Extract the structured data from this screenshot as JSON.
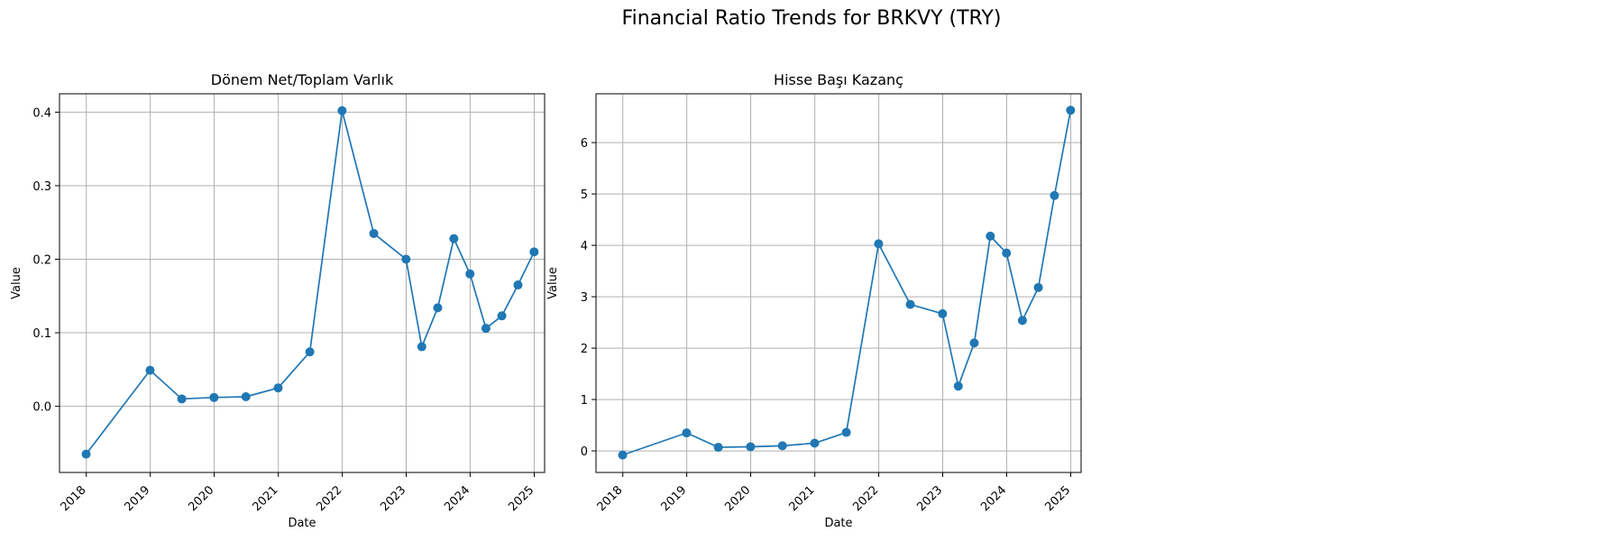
{
  "figure": {
    "title": "Financial Ratio Trends for BRKVY (TRY)"
  },
  "series_color": "#1f77b4",
  "chart_data": [
    {
      "type": "line",
      "title": "Dönem Net/Toplam Varlık",
      "xlabel": "Date",
      "ylabel": "Value",
      "grid": true,
      "x_type": "date",
      "xlim": [
        "2017-08-01",
        "2025-03-01"
      ],
      "ylim": [
        -0.09,
        0.425
      ],
      "x_ticks": [
        "2018",
        "2019",
        "2020",
        "2021",
        "2022",
        "2023",
        "2024",
        "2025"
      ],
      "y_ticks": [
        0.0,
        0.1,
        0.2,
        0.3,
        0.4
      ],
      "y_tick_labels": [
        "0.0",
        "0.1",
        "0.2",
        "0.3",
        "0.4"
      ],
      "series": [
        {
          "x": [
            "2017-12-31",
            "2018-12-31",
            "2019-06-30",
            "2019-12-31",
            "2020-06-30",
            "2020-12-31",
            "2021-06-30",
            "2021-12-31",
            "2022-06-30",
            "2022-12-31",
            "2023-03-31",
            "2023-06-30",
            "2023-09-30",
            "2023-12-31",
            "2024-03-31",
            "2024-06-30",
            "2024-09-30",
            "2024-12-31"
          ],
          "values": [
            -0.065,
            0.049,
            0.01,
            0.012,
            0.013,
            0.025,
            0.074,
            0.402,
            0.235,
            0.2,
            0.081,
            0.134,
            0.228,
            0.18,
            0.106,
            0.123,
            0.165,
            0.21
          ]
        }
      ]
    },
    {
      "type": "line",
      "title": "Hisse Başı Kazanç",
      "xlabel": "Date",
      "ylabel": "Value",
      "grid": true,
      "x_type": "date",
      "xlim": [
        "2017-08-01",
        "2025-03-01"
      ],
      "ylim": [
        -0.42,
        6.95
      ],
      "x_ticks": [
        "2018",
        "2019",
        "2020",
        "2021",
        "2022",
        "2023",
        "2024",
        "2025"
      ],
      "y_ticks": [
        0,
        1,
        2,
        3,
        4,
        5,
        6
      ],
      "y_tick_labels": [
        "0",
        "1",
        "2",
        "3",
        "4",
        "5",
        "6"
      ],
      "series": [
        {
          "x": [
            "2017-12-31",
            "2018-12-31",
            "2019-06-30",
            "2019-12-31",
            "2020-06-30",
            "2020-12-31",
            "2021-06-30",
            "2021-12-31",
            "2022-06-30",
            "2022-12-31",
            "2023-03-31",
            "2023-06-30",
            "2023-09-30",
            "2023-12-31",
            "2024-03-31",
            "2024-06-30",
            "2024-09-30",
            "2024-12-31"
          ],
          "values": [
            -0.08,
            0.35,
            0.07,
            0.08,
            0.1,
            0.15,
            0.36,
            4.03,
            2.85,
            2.67,
            1.26,
            2.1,
            4.18,
            3.85,
            2.54,
            3.18,
            4.97,
            6.63
          ]
        }
      ]
    }
  ]
}
